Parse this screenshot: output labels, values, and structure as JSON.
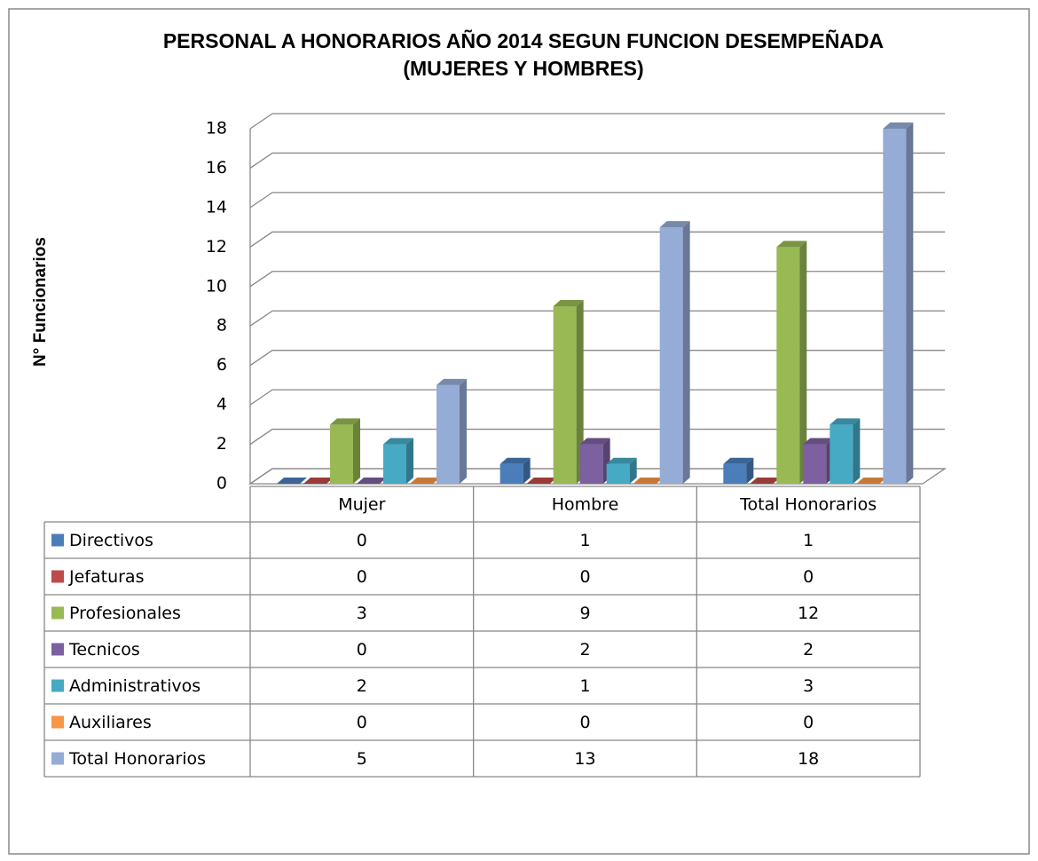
{
  "chart_data": {
    "type": "bar",
    "title": [
      "PERSONAL A HONORARIOS  AÑO 2014 SEGUN FUNCION DESEMPEÑADA",
      "(MUJERES Y HOMBRES)"
    ],
    "y_label": "N° Funcionarios",
    "categories": [
      "Mujer",
      "Hombre",
      "Total Honorarios"
    ],
    "series": [
      {
        "name": "Directivos",
        "color": "#4a7ebb",
        "values": [
          0,
          1,
          1
        ]
      },
      {
        "name": "Jefaturas",
        "color": "#be4b48",
        "values": [
          0,
          0,
          0
        ]
      },
      {
        "name": "Profesionales",
        "color": "#98b954",
        "values": [
          3,
          9,
          12
        ]
      },
      {
        "name": "Tecnicos",
        "color": "#7d60a0",
        "values": [
          0,
          2,
          2
        ]
      },
      {
        "name": "Administrativos",
        "color": "#46aac5",
        "values": [
          2,
          1,
          3
        ]
      },
      {
        "name": "Auxiliares",
        "color": "#f79646",
        "values": [
          0,
          0,
          0
        ]
      },
      {
        "name": "Total Honorarios",
        "color": "#95acd6",
        "values": [
          5,
          13,
          18
        ]
      }
    ],
    "ylim": [
      0,
      18
    ],
    "yticks": [
      0,
      2,
      4,
      6,
      8,
      10,
      12,
      14,
      16,
      18
    ],
    "grid": true
  }
}
